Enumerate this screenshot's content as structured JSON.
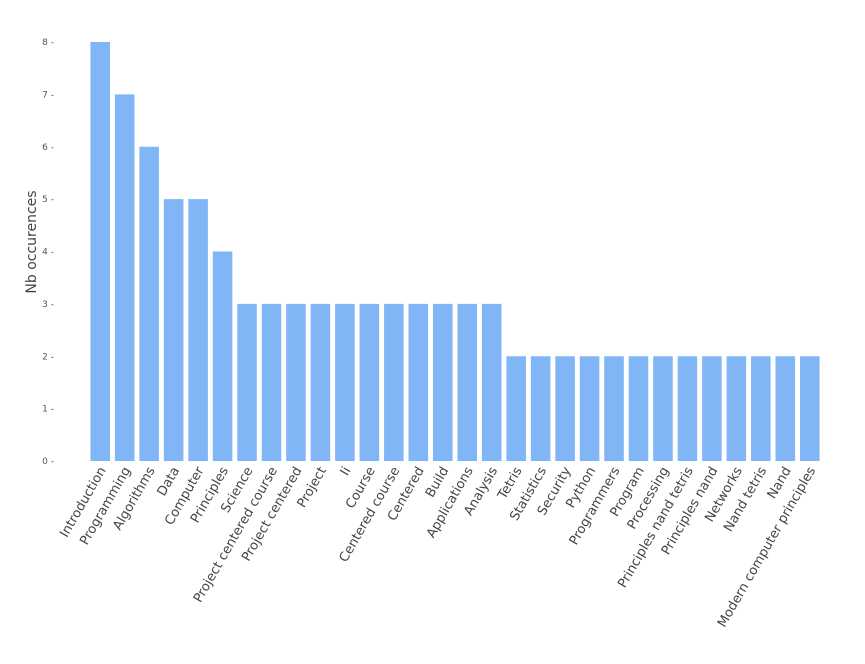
{
  "chart_data": {
    "type": "bar",
    "title": "",
    "xlabel": "",
    "ylabel": "Nb occurences",
    "ylim": [
      0,
      8
    ],
    "yticks": [
      0,
      1,
      2,
      3,
      4,
      5,
      6,
      7,
      8
    ],
    "grid": false,
    "bar_color": "#80b6f5",
    "categories": [
      "Introduction",
      "Programming",
      "Algorithms",
      "Data",
      "Computer",
      "Principles",
      "Science",
      "Project centered course",
      "Project centered",
      "Project",
      "Ii",
      "Course",
      "Centered course",
      "Centered",
      "Build",
      "Applications",
      "Analysis",
      "Tetris",
      "Statistics",
      "Security",
      "Python",
      "Programmers",
      "Program",
      "Processing",
      "Principles nand tetris",
      "Principles nand",
      "Networks",
      "Nand tetris",
      "Nand",
      "Modern computer principles"
    ],
    "values": [
      8,
      7,
      6,
      5,
      5,
      4,
      3,
      3,
      3,
      3,
      3,
      3,
      3,
      3,
      3,
      3,
      3,
      2,
      2,
      2,
      2,
      2,
      2,
      2,
      2,
      2,
      2,
      2,
      2,
      2
    ]
  }
}
